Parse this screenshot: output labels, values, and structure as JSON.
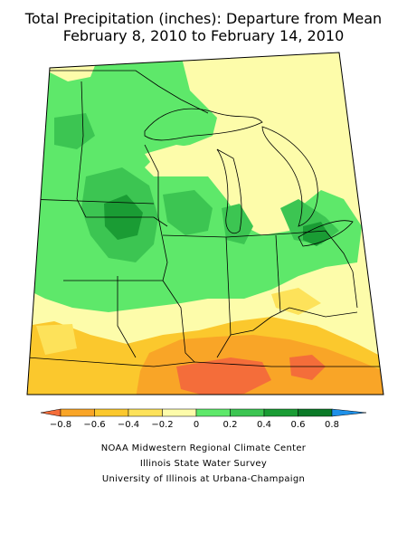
{
  "title": {
    "line1": "Total Precipitation (inches): Departure from Mean",
    "line2": "February 8, 2010 to February 14, 2010"
  },
  "legend": {
    "ticks": [
      "−0.8",
      "−0.6",
      "−0.4",
      "−0.2",
      "0",
      "0.2",
      "0.4",
      "0.6",
      "0.8"
    ],
    "colors": [
      "#f46d3a",
      "#f9a527",
      "#fbc82d",
      "#fde25a",
      "#fdfcaa",
      "#5ee86a",
      "#3cc552",
      "#1a9c34",
      "#0b7a27",
      "#1e90e8"
    ]
  },
  "credits": {
    "line1": "NOAA Midwestern Regional Climate Center",
    "line2": "Illinois State Water Survey",
    "line3": "University of Illinois at Urbana-Champaign"
  }
}
